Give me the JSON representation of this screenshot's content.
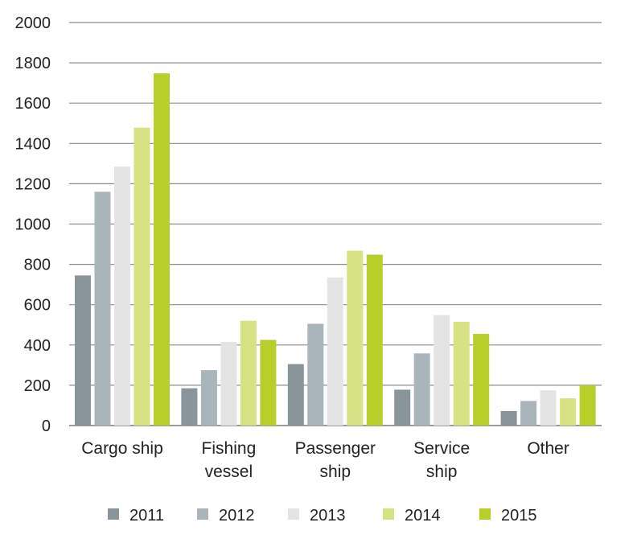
{
  "chart_data": {
    "type": "bar",
    "title": "",
    "xlabel": "",
    "ylabel": "",
    "ylim": [
      0,
      2000
    ],
    "yticks": [
      0,
      200,
      400,
      600,
      800,
      1000,
      1200,
      1400,
      1600,
      1800,
      2000
    ],
    "grid": true,
    "legend_position": "bottom",
    "categories": [
      [
        "Cargo ship"
      ],
      [
        "Fishing",
        "vessel"
      ],
      [
        "Passenger",
        "ship"
      ],
      [
        "Service",
        "ship"
      ],
      [
        "Other"
      ]
    ],
    "series": [
      {
        "name": "2011",
        "color": "#8a959b",
        "values": [
          745,
          185,
          305,
          178,
          72
        ]
      },
      {
        "name": "2012",
        "color": "#a9b4bb",
        "values": [
          1160,
          275,
          505,
          358,
          122
        ]
      },
      {
        "name": "2013",
        "color": "#e4e4e4",
        "values": [
          1285,
          415,
          735,
          548,
          175
        ]
      },
      {
        "name": "2014",
        "color": "#d6e283",
        "values": [
          1478,
          520,
          868,
          515,
          135
        ]
      },
      {
        "name": "2015",
        "color": "#b8cf2a",
        "values": [
          1748,
          425,
          848,
          455,
          200
        ]
      }
    ]
  }
}
